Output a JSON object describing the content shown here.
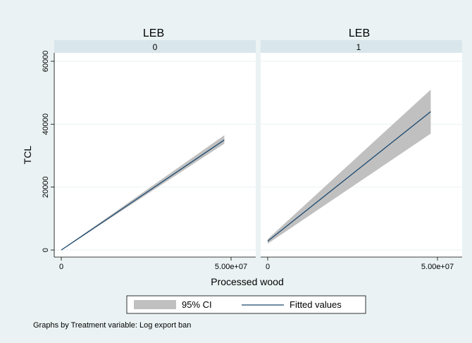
{
  "chart_data": {
    "type": "line",
    "colors": {
      "outer_background": "#eaf2f3",
      "plot_background": "#ffffff",
      "strip_background": "#d9e6eb",
      "ci_fill": "#c0c0c0",
      "fit_line": "#1a476f",
      "gridline": "#eaf2f3"
    },
    "xlabel": "Processed wood",
    "ylabel": "TCL",
    "ylim": [
      0,
      60000
    ],
    "yticks": [
      0,
      20000,
      40000,
      60000
    ],
    "ytick_labels": [
      "0",
      "20000",
      "40000",
      "60000"
    ],
    "xlim": [
      0,
      50000000
    ],
    "xticks": [
      0,
      50000000
    ],
    "xtick_labels": [
      "0",
      "5.00e+07"
    ],
    "grid": true,
    "legend": {
      "position": "bottom",
      "entries": [
        {
          "label": "95% CI",
          "kind": "area"
        },
        {
          "label": "Fitted values",
          "kind": "line"
        }
      ]
    },
    "note": "Graphs by Treatment variable: Log export ban",
    "panels": [
      {
        "title": "LEB",
        "strip": "0",
        "fit": {
          "x": [
            0,
            48000000
          ],
          "y": [
            0,
            35000
          ]
        },
        "ci_upper": {
          "x": [
            0,
            48000000
          ],
          "y": [
            100,
            36500
          ]
        },
        "ci_lower": {
          "x": [
            0,
            48000000
          ],
          "y": [
            -100,
            33800
          ]
        }
      },
      {
        "title": "LEB",
        "strip": "1",
        "fit": {
          "x": [
            0,
            48000000
          ],
          "y": [
            2800,
            44000
          ]
        },
        "ci_upper": {
          "x": [
            0,
            48000000
          ],
          "y": [
            3500,
            51000
          ]
        },
        "ci_lower": {
          "x": [
            0,
            48000000
          ],
          "y": [
            2000,
            37000
          ]
        }
      }
    ]
  }
}
